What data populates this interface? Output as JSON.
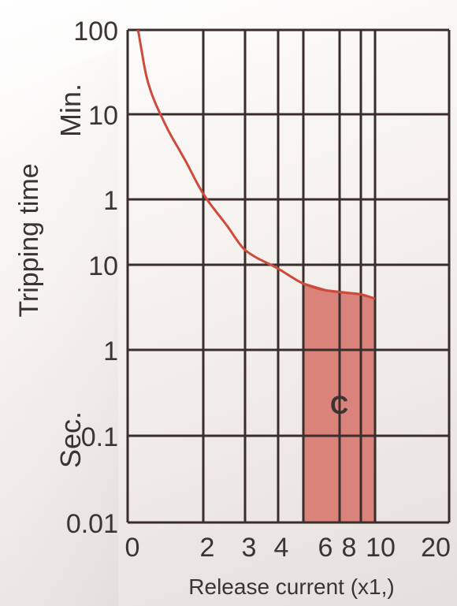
{
  "chart_data": {
    "type": "area",
    "title": "",
    "xlabel": "Release current (x1,)",
    "ylabel": "Tripping time",
    "x_scale": "log",
    "x_ticks": [
      "0",
      "2",
      "3",
      "4",
      "6",
      "8",
      "10",
      "20"
    ],
    "y_ticks": [
      {
        "label": "100",
        "unit": "min"
      },
      {
        "label": "10",
        "unit": "min"
      },
      {
        "label": "1",
        "unit": "min"
      },
      {
        "label": "10",
        "unit": "sec"
      },
      {
        "label": "1",
        "unit": "sec"
      },
      {
        "label": "0.1",
        "unit": "sec"
      },
      {
        "label": "0.01",
        "unit": "sec"
      }
    ],
    "y_units": {
      "upper": "Min.",
      "lower": "Sec."
    },
    "grid": true,
    "curve": {
      "x": [
        1.1,
        1.2,
        1.4,
        1.7,
        2.0,
        2.5,
        3.0,
        4.0,
        5.0,
        6.0,
        8.0,
        10.0
      ],
      "y_seconds": [
        6000,
        1500,
        480,
        170,
        70,
        30,
        15,
        9,
        6,
        5,
        4.5,
        4
      ]
    },
    "zone": {
      "label": "C",
      "x_start": 5,
      "x_end": 10,
      "y_bottom_seconds": 0.01
    },
    "colors": {
      "curve": "#cf4a3c",
      "zone_fill": "#d9837a",
      "grid": "#3a2e2d",
      "text": "#3a3433"
    }
  }
}
